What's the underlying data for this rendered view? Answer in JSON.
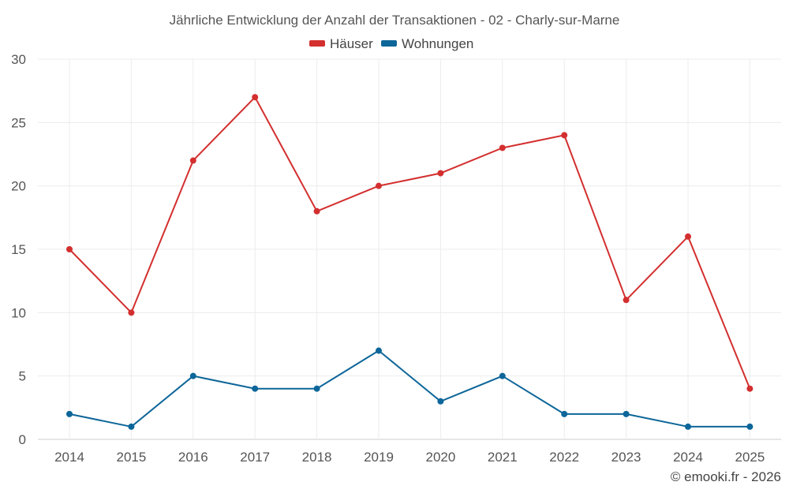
{
  "chart_data": {
    "type": "line",
    "title": "Jährliche Entwicklung der Anzahl der Transaktionen - 02 - Charly-sur-Marne",
    "categories": [
      "2014",
      "2015",
      "2016",
      "2017",
      "2018",
      "2019",
      "2020",
      "2021",
      "2022",
      "2023",
      "2024",
      "2025"
    ],
    "y_ticks": [
      "0",
      "5",
      "10",
      "15",
      "20",
      "25",
      "30"
    ],
    "ylim": [
      0,
      30
    ],
    "grid": true,
    "legend_position": "top-center",
    "series": [
      {
        "name": "Häuser",
        "color": "#d32f2f",
        "values": [
          15,
          10,
          22,
          27,
          18,
          20,
          21,
          23,
          24,
          11,
          16,
          4
        ]
      },
      {
        "name": "Wohnungen",
        "color": "#0d6699",
        "values": [
          2,
          1,
          5,
          4,
          4,
          7,
          3,
          5,
          2,
          2,
          1,
          1
        ]
      }
    ],
    "credit": "© emooki.fr - 2026"
  }
}
